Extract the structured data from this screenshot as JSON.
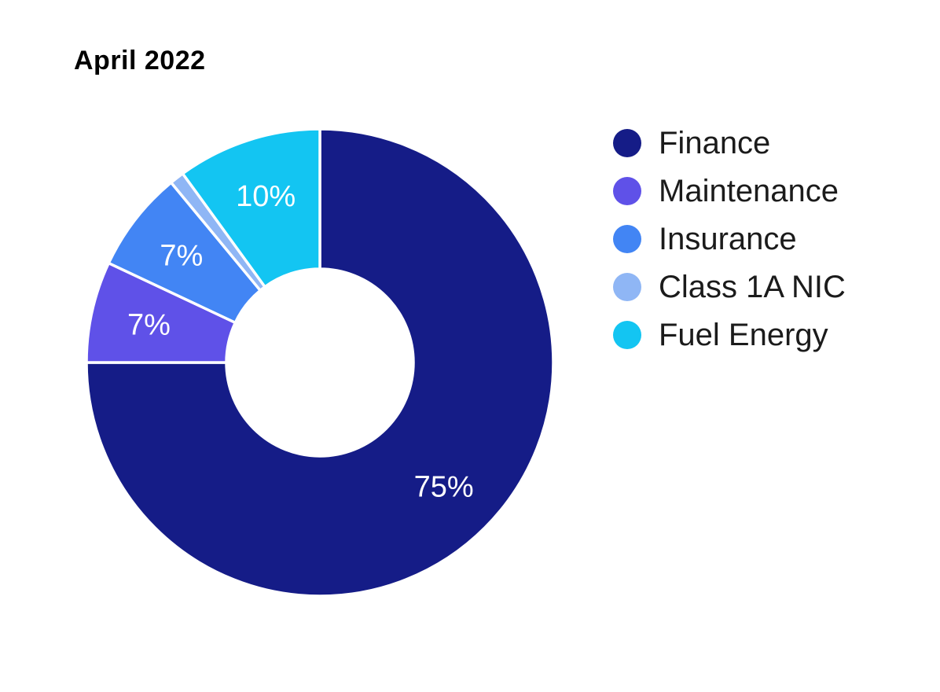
{
  "title": "April 2022",
  "chart_data": {
    "type": "pie",
    "subtype": "donut",
    "title": "April 2022",
    "categories": [
      "Finance",
      "Maintenance",
      "Insurance",
      "Class 1A NIC",
      "Fuel Energy"
    ],
    "values": [
      75,
      7,
      7,
      1,
      10
    ],
    "unit": "%",
    "slice_labels": [
      "75%",
      "7%",
      "7%",
      "",
      "10%"
    ],
    "colors": [
      "#151C87",
      "#5F51E8",
      "#4285F4",
      "#8FB6F5",
      "#13C5F2"
    ],
    "start_angle_deg": 0,
    "direction": "clockwise",
    "donut_hole_ratio": 0.4,
    "legend_position": "right",
    "legend_marker": "circle",
    "slice_label_color": "#FFFFFF",
    "separator_color": "#FFFFFF",
    "background_color": "#FFFFFF",
    "title_color": "#000000",
    "legend_text_color": "#1B1B1B"
  }
}
